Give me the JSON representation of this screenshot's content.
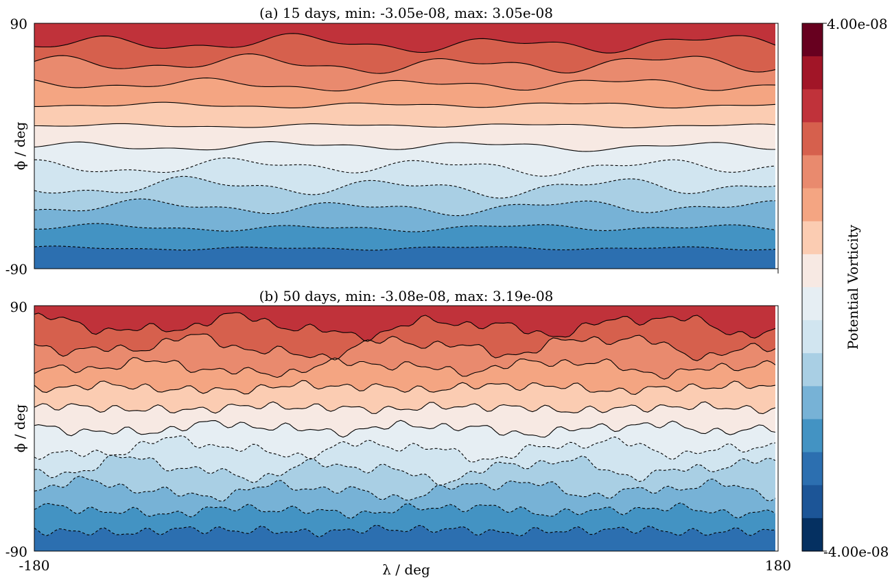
{
  "chart_data": [
    {
      "type": "heatmap",
      "subtype": "filled-contour map",
      "title": "(a) 15 days, min: -3.05e-08, max: 3.05e-08",
      "ylabel": "ϕ / deg",
      "y_tick_labels": [
        "90",
        "-90"
      ],
      "x_tick_labels": [],
      "xlim": [
        -180,
        180
      ],
      "ylim": [
        -90,
        90
      ],
      "min": -3.05e-08,
      "max": 3.05e-08,
      "contour_style": "solid lines for positive levels, dashed lines for negative levels"
    },
    {
      "type": "heatmap",
      "subtype": "filled-contour map",
      "title": "(b) 50 days, min: -3.08e-08, max: 3.19e-08",
      "xlabel": "λ / deg",
      "ylabel": "ϕ / deg",
      "x_tick_labels": [
        "-180",
        "180"
      ],
      "y_tick_labels": [
        "90",
        "-90"
      ],
      "xlim": [
        -180,
        180
      ],
      "ylim": [
        -90,
        90
      ],
      "min": -3.08e-08,
      "max": 3.19e-08,
      "contour_style": "solid lines for positive levels, dashed lines for negative levels"
    }
  ],
  "colorbar": {
    "label": "Potential Vorticity",
    "max_label": "4.00e-08",
    "min_label": "-4.00e-08",
    "range": [
      -4e-08,
      4e-08
    ],
    "colormap": "RdBu_r",
    "levels": 16,
    "colors_top_to_bottom": [
      "#67001f",
      "#a11527",
      "#c0323a",
      "#d6604d",
      "#e98a6e",
      "#f4a582",
      "#fbccb2",
      "#f7e9e3",
      "#e6eef3",
      "#d1e5f0",
      "#a9cfe4",
      "#77b2d6",
      "#4393c3",
      "#2c6fb0",
      "#1c5597",
      "#053061"
    ]
  }
}
